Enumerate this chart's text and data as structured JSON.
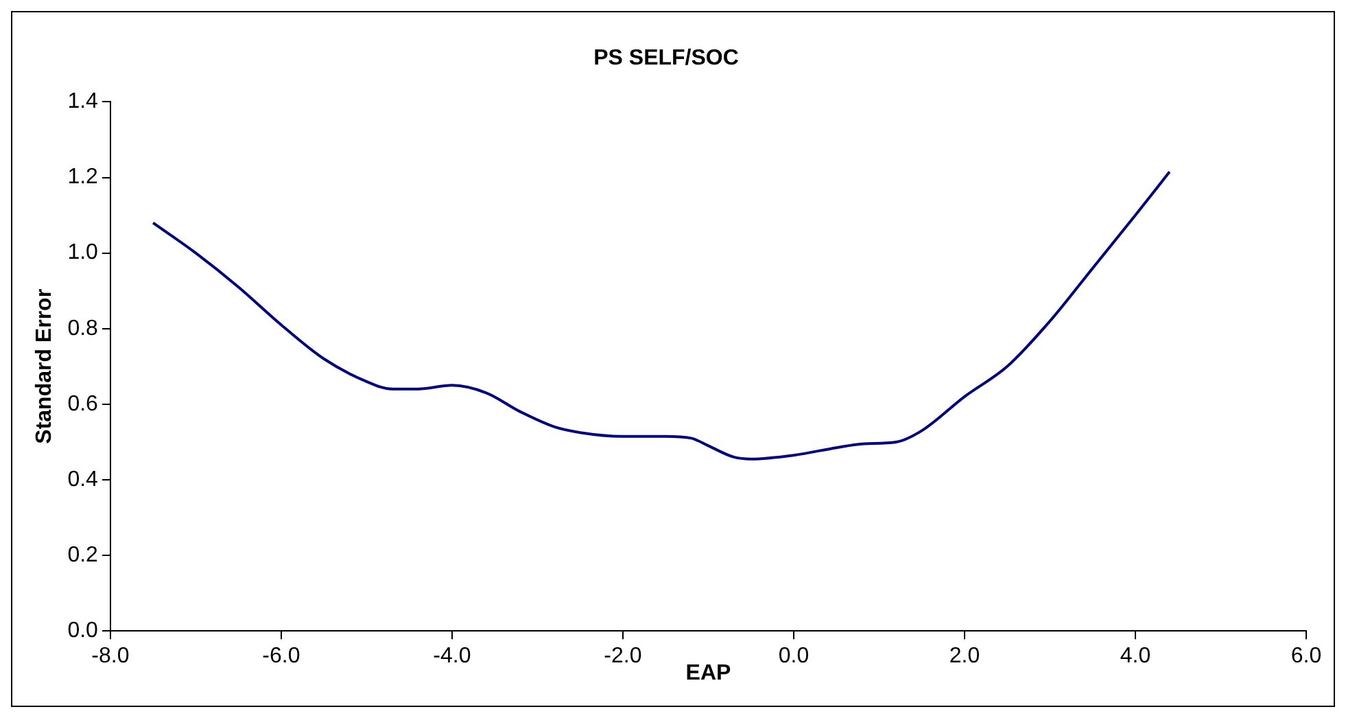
{
  "chart_data": {
    "type": "line",
    "title": "PS SELF/SOC",
    "xlabel": "EAP",
    "ylabel": "Standard Error",
    "x": [
      -7.5,
      -7.0,
      -6.5,
      -6.0,
      -5.5,
      -5.0,
      -4.7,
      -4.4,
      -4.0,
      -3.6,
      -3.2,
      -2.8,
      -2.5,
      -2.0,
      -1.5,
      -1.2,
      -1.0,
      -0.7,
      -0.5,
      0.0,
      0.5,
      0.8,
      1.2,
      1.5,
      2.0,
      2.5,
      3.0,
      3.5,
      4.0,
      4.4
    ],
    "series": [
      {
        "color": "#000080",
        "values": [
          1.08,
          1.0,
          0.91,
          0.81,
          0.72,
          0.66,
          0.64,
          0.64,
          0.65,
          0.63,
          0.58,
          0.54,
          0.525,
          0.515,
          0.515,
          0.51,
          0.49,
          0.46,
          0.455,
          0.465,
          0.485,
          0.495,
          0.5,
          0.53,
          0.62,
          0.7,
          0.82,
          0.96,
          1.1,
          1.215
        ]
      }
    ],
    "xlim": [
      -8,
      6
    ],
    "xticks": [
      {
        "value": -8,
        "label": "-8.0"
      },
      {
        "value": -6,
        "label": "-6.0"
      },
      {
        "value": -4,
        "label": "-4.0"
      },
      {
        "value": -2,
        "label": "-2.0"
      },
      {
        "value": 0,
        "label": "0.0"
      },
      {
        "value": 2,
        "label": "2.0"
      },
      {
        "value": 4,
        "label": "4.0"
      },
      {
        "value": 6,
        "label": "6.0"
      }
    ],
    "ylim": [
      0,
      1.4
    ],
    "yticks": [
      {
        "value": 0,
        "label": "0.0"
      },
      {
        "value": 0.2,
        "label": "0.2"
      },
      {
        "value": 0.4,
        "label": "0.4"
      },
      {
        "value": 0.6,
        "label": "0.6"
      },
      {
        "value": 0.8,
        "label": "0.8"
      },
      {
        "value": 1.0,
        "label": "1.0"
      },
      {
        "value": 1.2,
        "label": "1.2"
      },
      {
        "value": 1.4,
        "label": "1.4"
      }
    ],
    "grid": false,
    "legend": false,
    "marker": "none",
    "line_style": "solid"
  }
}
